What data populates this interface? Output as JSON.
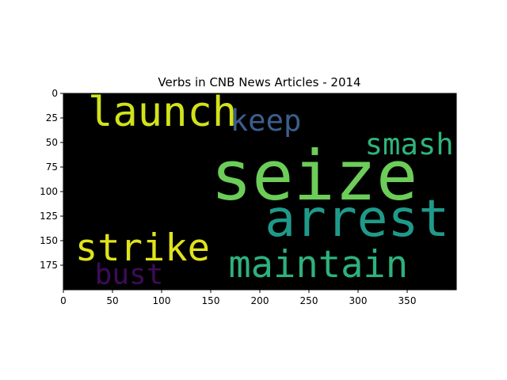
{
  "chart_data": {
    "type": "wordcloud",
    "title": "Verbs in CNB News Articles - 2014",
    "xlim": [
      0,
      400
    ],
    "ylim": [
      200,
      0
    ],
    "x_ticks": [
      0,
      50,
      100,
      150,
      200,
      250,
      300,
      350
    ],
    "y_ticks": [
      0,
      25,
      50,
      75,
      100,
      125,
      150,
      175
    ],
    "background_color": "#000000",
    "words": [
      {
        "text": "seize",
        "x": 150,
        "y": 108,
        "size": 70,
        "color": "#6ccd59"
      },
      {
        "text": "arrest",
        "x": 205,
        "y": 145,
        "size": 52,
        "color": "#1f9a8a"
      },
      {
        "text": "launch",
        "x": 25,
        "y": 33,
        "size": 42,
        "color": "#d2e21b"
      },
      {
        "text": "strike",
        "x": 12,
        "y": 170,
        "size": 38,
        "color": "#e0e31a"
      },
      {
        "text": "maintain",
        "x": 168,
        "y": 187,
        "size": 38,
        "color": "#2db27d"
      },
      {
        "text": "keep",
        "x": 170,
        "y": 38,
        "size": 30,
        "color": "#3b5e8d"
      },
      {
        "text": "smash",
        "x": 307,
        "y": 62,
        "size": 30,
        "color": "#2fb47c"
      },
      {
        "text": "bust",
        "x": 32,
        "y": 194,
        "size": 29,
        "color": "#3c0d58"
      }
    ]
  }
}
